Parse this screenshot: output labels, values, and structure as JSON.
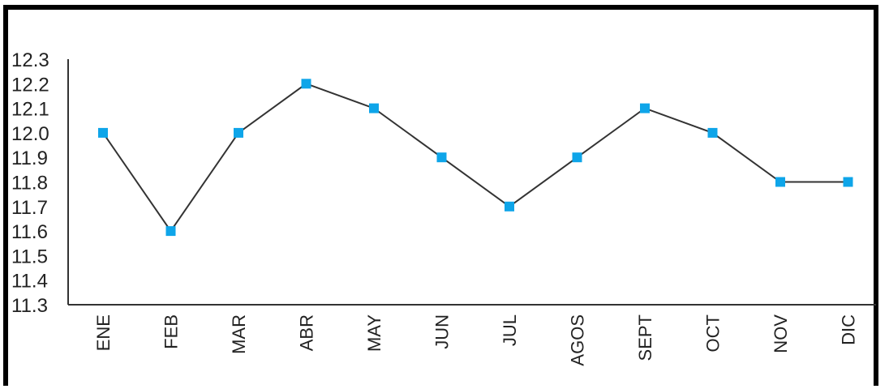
{
  "chart_data": {
    "type": "line",
    "categories": [
      "ENE",
      "FEB",
      "MAR",
      "ABR",
      "MAY",
      "JUN",
      "JUL",
      "AGOS",
      "SEPT",
      "OCT",
      "NOV",
      "DIC"
    ],
    "series": [
      {
        "values": [
          12.0,
          11.6,
          12.0,
          12.2,
          12.1,
          11.9,
          11.7,
          11.9,
          12.1,
          12.0,
          11.8,
          11.8
        ]
      }
    ],
    "y_ticks": [
      "12.3",
      "12.2",
      "12.1",
      "12.0",
      "11.9",
      "11.8",
      "11.7",
      "11.6",
      "11.5",
      "11.4",
      "11.3"
    ],
    "ylim": [
      11.3,
      12.3
    ],
    "grid": false,
    "line_color": "#333333",
    "marker_color": "#0ea5e9",
    "marker_shape": "square"
  }
}
